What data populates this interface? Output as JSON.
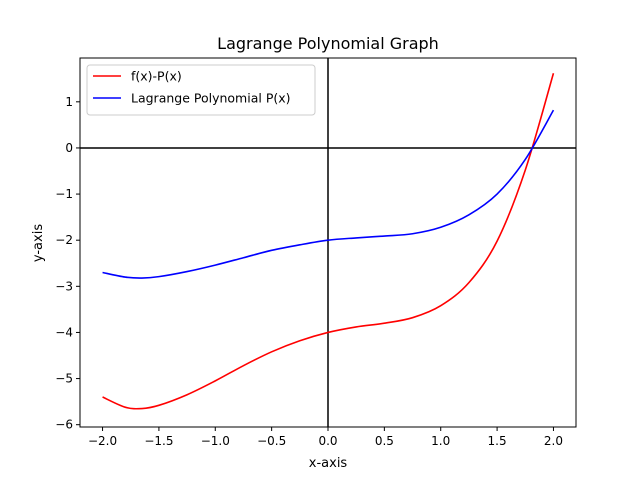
{
  "chart_data": {
    "type": "line",
    "title": "Lagrange Polynomial Graph",
    "xlabel": "x-axis",
    "ylabel": "y-axis",
    "xlim": [
      -2.2,
      2.2
    ],
    "ylim": [
      -6.05,
      1.95
    ],
    "xticks": [
      -2.0,
      -1.5,
      -1.0,
      -0.5,
      0.0,
      0.5,
      1.0,
      1.5,
      2.0
    ],
    "xtick_labels": [
      "−2.0",
      "−1.5",
      "−1.0",
      "−0.5",
      "0.0",
      "0.5",
      "1.0",
      "1.5",
      "2.0"
    ],
    "yticks": [
      1,
      0,
      -1,
      -2,
      -3,
      -4,
      -5,
      -6
    ],
    "ytick_labels": [
      "1",
      "0",
      "−1",
      "−2",
      "−3",
      "−4",
      "−5",
      "−6"
    ],
    "grid": false,
    "reference_lines": {
      "x": 0,
      "y": 0,
      "color": "#000000"
    },
    "legend": {
      "position": "top-left"
    },
    "series": [
      {
        "name": "f(x)-P(x)",
        "color": "#ff0000",
        "x": [
          -2.0,
          -1.8,
          -1.65,
          -1.5,
          -1.25,
          -1.0,
          -0.75,
          -0.5,
          -0.25,
          0.0,
          0.25,
          0.5,
          0.75,
          1.0,
          1.25,
          1.5,
          1.75,
          2.0
        ],
        "y": [
          -5.4,
          -5.62,
          -5.65,
          -5.58,
          -5.35,
          -5.05,
          -4.72,
          -4.42,
          -4.18,
          -4.0,
          -3.88,
          -3.8,
          -3.68,
          -3.42,
          -2.92,
          -2.02,
          -0.48,
          1.62
        ]
      },
      {
        "name": "Lagrange Polynomial P(x)",
        "color": "#0000ff",
        "x": [
          -2.0,
          -1.8,
          -1.65,
          -1.5,
          -1.25,
          -1.0,
          -0.75,
          -0.5,
          -0.25,
          0.0,
          0.25,
          0.5,
          0.75,
          1.0,
          1.25,
          1.5,
          1.75,
          2.0
        ],
        "y": [
          -2.7,
          -2.8,
          -2.82,
          -2.79,
          -2.68,
          -2.54,
          -2.38,
          -2.22,
          -2.1,
          -2.0,
          -1.95,
          -1.91,
          -1.86,
          -1.72,
          -1.45,
          -1.0,
          -0.25,
          0.82
        ]
      }
    ]
  }
}
